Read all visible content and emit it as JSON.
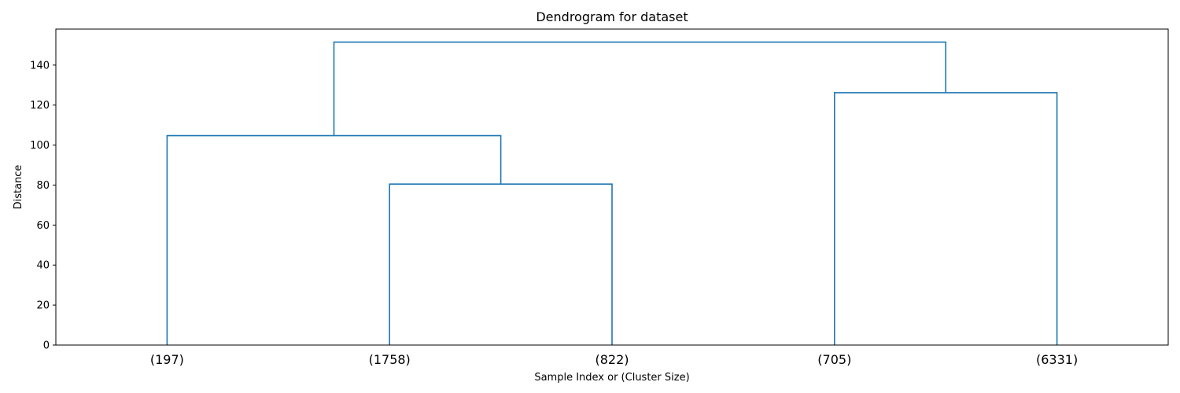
{
  "chart_data": {
    "type": "dendrogram",
    "title": "Dendrogram for dataset",
    "xlabel": "Sample Index or (Cluster Size)",
    "ylabel": "Distance",
    "ylim": [
      0,
      158
    ],
    "yticks": [
      0,
      20,
      40,
      60,
      80,
      100,
      120,
      140
    ],
    "leaves": [
      "(197)",
      "(1758)",
      "(822)",
      "(705)",
      "(6331)"
    ],
    "links": [
      {
        "left": 1,
        "right": 2,
        "distance": 80.5
      },
      {
        "left": 0,
        "right": 5,
        "distance": 104.7
      },
      {
        "left": 3,
        "right": 4,
        "distance": 126.2
      },
      {
        "left": 6,
        "right": 7,
        "distance": 151.5
      }
    ],
    "line_color": "#1f77b4",
    "grid": false
  }
}
